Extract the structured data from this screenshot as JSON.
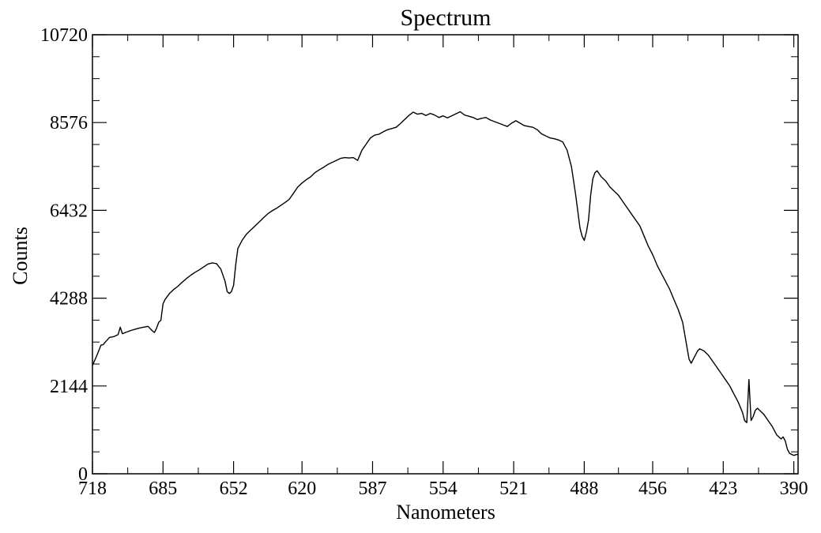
{
  "chart_data": {
    "type": "line",
    "title": "Spectrum",
    "xlabel": "Nanometers",
    "ylabel": "Counts",
    "x_reversed": true,
    "xlim": [
      718,
      388
    ],
    "ylim": [
      0,
      10720
    ],
    "xticks": [
      {
        "value": 718,
        "label": "718"
      },
      {
        "value": 685,
        "label": "685"
      },
      {
        "value": 652,
        "label": "652"
      },
      {
        "value": 620,
        "label": "620"
      },
      {
        "value": 587,
        "label": "587"
      },
      {
        "value": 554,
        "label": "554"
      },
      {
        "value": 521,
        "label": "521"
      },
      {
        "value": 488,
        "label": "488"
      },
      {
        "value": 456,
        "label": "456"
      },
      {
        "value": 423,
        "label": "423"
      },
      {
        "value": 390,
        "label": "390"
      }
    ],
    "yticks": [
      {
        "value": 0,
        "label": "0"
      },
      {
        "value": 2144,
        "label": "2144"
      },
      {
        "value": 4288,
        "label": "4288"
      },
      {
        "value": 6432,
        "label": "6432"
      },
      {
        "value": 8576,
        "label": "8576"
      },
      {
        "value": 10720,
        "label": "10720"
      }
    ],
    "line_color": "#000000",
    "grid": false,
    "series": [
      {
        "x": [
          718,
          716,
          714,
          713,
          712,
          710,
          708,
          706,
          705,
          704,
          702,
          700,
          698,
          696,
          694,
          692,
          690,
          689,
          688,
          687,
          686,
          685,
          684,
          682,
          680,
          678,
          676,
          674,
          672,
          670,
          668,
          666,
          664,
          662,
          660,
          658,
          656,
          655,
          654,
          653,
          652,
          651,
          650,
          649,
          648,
          646,
          644,
          642,
          640,
          638,
          636,
          634,
          632,
          630,
          628,
          626,
          624,
          622,
          620,
          618,
          616,
          614,
          612,
          610,
          608,
          606,
          604,
          602,
          600,
          598,
          596,
          594,
          592,
          590,
          588,
          586,
          584,
          582,
          580,
          578,
          576,
          574,
          572,
          570,
          568,
          566,
          564,
          562,
          560,
          558,
          556,
          554,
          552,
          550,
          548,
          546,
          544,
          542,
          540,
          538,
          536,
          534,
          532,
          530,
          528,
          526,
          524,
          522,
          520,
          518,
          516,
          514,
          512,
          510,
          508,
          506,
          504,
          502,
          500,
          498,
          496,
          494,
          492,
          490,
          489,
          488,
          487,
          486,
          485,
          484,
          483,
          482,
          480,
          478,
          476,
          474,
          472,
          470,
          468,
          466,
          464,
          462,
          460,
          458,
          456,
          454,
          452,
          450,
          448,
          446,
          444,
          442,
          440,
          439,
          438,
          437,
          436,
          435,
          434,
          432,
          430,
          428,
          426,
          424,
          422,
          420,
          418,
          416,
          414,
          413,
          412,
          411,
          410,
          409,
          408,
          407,
          406,
          404,
          402,
          400,
          398,
          396,
          395,
          394,
          393,
          392,
          390,
          388
        ],
        "y": [
          2644,
          2880,
          3140,
          3150,
          3215,
          3330,
          3350,
          3400,
          3580,
          3420,
          3460,
          3500,
          3530,
          3560,
          3580,
          3600,
          3490,
          3450,
          3560,
          3700,
          3750,
          4150,
          4260,
          4400,
          4500,
          4580,
          4680,
          4770,
          4850,
          4920,
          4980,
          5050,
          5120,
          5150,
          5130,
          5000,
          4700,
          4450,
          4400,
          4450,
          4600,
          5100,
          5500,
          5600,
          5700,
          5850,
          5950,
          6050,
          6150,
          6250,
          6350,
          6420,
          6480,
          6550,
          6620,
          6700,
          6850,
          7000,
          7100,
          7180,
          7250,
          7350,
          7420,
          7480,
          7550,
          7600,
          7650,
          7700,
          7720,
          7710,
          7720,
          7650,
          7900,
          8050,
          8200,
          8270,
          8290,
          8350,
          8400,
          8430,
          8460,
          8550,
          8650,
          8750,
          8830,
          8780,
          8800,
          8750,
          8800,
          8760,
          8700,
          8740,
          8690,
          8740,
          8790,
          8840,
          8760,
          8730,
          8700,
          8650,
          8680,
          8700,
          8640,
          8600,
          8560,
          8520,
          8480,
          8560,
          8620,
          8560,
          8500,
          8480,
          8460,
          8400,
          8300,
          8250,
          8200,
          8180,
          8150,
          8100,
          7900,
          7500,
          6800,
          6000,
          5800,
          5700,
          5900,
          6200,
          6800,
          7200,
          7350,
          7400,
          7250,
          7150,
          7000,
          6900,
          6800,
          6650,
          6500,
          6350,
          6200,
          6050,
          5800,
          5550,
          5350,
          5100,
          4900,
          4700,
          4500,
          4250,
          4000,
          3700,
          3100,
          2800,
          2700,
          2800,
          2900,
          3000,
          3050,
          3000,
          2900,
          2750,
          2600,
          2450,
          2300,
          2150,
          1950,
          1750,
          1500,
          1300,
          1250,
          2300,
          1300,
          1400,
          1550,
          1600,
          1550,
          1450,
          1300,
          1150,
          950,
          850,
          900,
          800,
          600,
          500,
          450,
          480
        ]
      }
    ]
  }
}
